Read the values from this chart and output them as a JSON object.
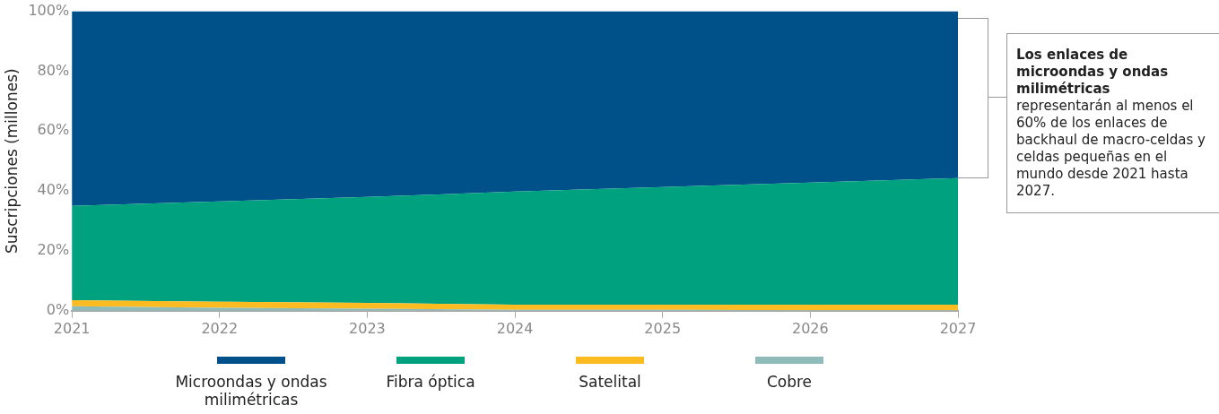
{
  "chart_data": {
    "type": "area",
    "stacked": true,
    "ylabel": "Suscripciones (millones)",
    "x": [
      2021,
      2022,
      2023,
      2024,
      2025,
      2026,
      2027
    ],
    "xlim": [
      2021,
      2027
    ],
    "xticks": [
      2021,
      2022,
      2023,
      2024,
      2025,
      2026,
      2027
    ],
    "ylim": [
      0,
      100
    ],
    "yticks": [
      {
        "value": 0,
        "label": "0%"
      },
      {
        "value": 20,
        "label": "20%"
      },
      {
        "value": 40,
        "label": "40%"
      },
      {
        "value": 60,
        "label": "60%"
      },
      {
        "value": 80,
        "label": "80%"
      },
      {
        "value": 100,
        "label": "100%"
      }
    ],
    "grid": false,
    "legend": "bottom",
    "series": [
      {
        "name": "Cobre",
        "color": "#8fbcb8",
        "values": [
          1.5,
          1,
          0.7,
          0.3,
          0.3,
          0.2,
          0.2
        ]
      },
      {
        "name": "Satelital",
        "color": "#fbbb21",
        "values": [
          2,
          2,
          1.9,
          1.7,
          1.7,
          1.8,
          1.8
        ]
      },
      {
        "name": "Fibra óptica",
        "color": "#00a17f",
        "values": [
          31.5,
          33.5,
          35.4,
          37.8,
          39.3,
          40.8,
          42.3
        ]
      },
      {
        "name": "Microondas y ondas milimétricas",
        "color": "#00508a",
        "values": [
          65,
          63.5,
          62,
          60.2,
          58.7,
          57.2,
          55.7
        ]
      }
    ],
    "annotations": [
      "Los enlaces de microondas y ondas milimétricas",
      "representarán al menos el 60% de los enlaces de backhaul de macro-celdas y celdas pequeñas en el mundo desde 2021 hasta 2027."
    ]
  }
}
